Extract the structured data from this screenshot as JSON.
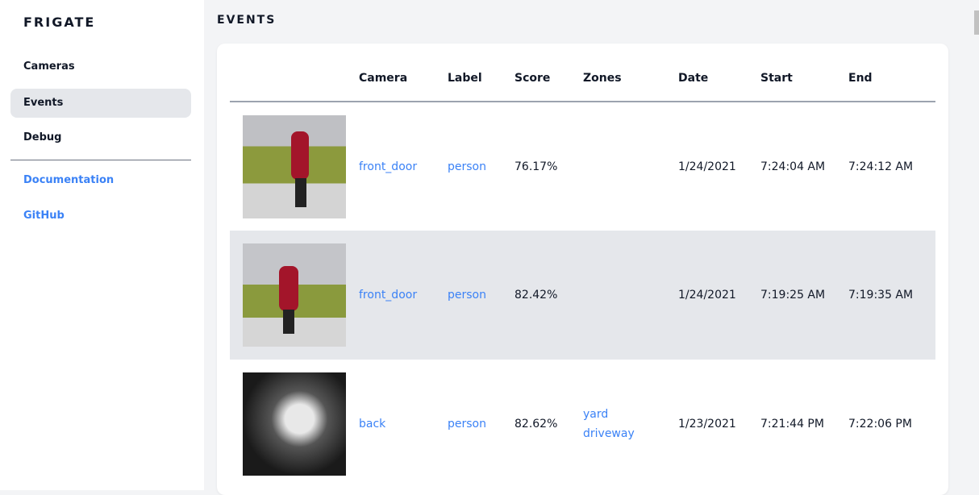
{
  "sidebar": {
    "brand": "FRIGATE",
    "items": [
      {
        "label": "Cameras"
      },
      {
        "label": "Events",
        "active": true
      },
      {
        "label": "Debug"
      }
    ],
    "links": [
      {
        "label": "Documentation"
      },
      {
        "label": "GitHub"
      }
    ]
  },
  "page": {
    "title": "EVENTS"
  },
  "table": {
    "headers": [
      "",
      "Camera",
      "Label",
      "Score",
      "Zones",
      "Date",
      "Start",
      "End"
    ],
    "rows": [
      {
        "camera": "front_door",
        "label": "person",
        "score": "76.17%",
        "zones": [
          "",
          ""
        ],
        "date": "1/24/2021",
        "start": "7:24:04 AM",
        "end": "7:24:12 AM"
      },
      {
        "camera": "front_door",
        "label": "person",
        "score": "82.42%",
        "zones": [
          "",
          ""
        ],
        "date": "1/24/2021",
        "start": "7:19:25 AM",
        "end": "7:19:35 AM"
      },
      {
        "camera": "back",
        "label": "person",
        "score": "82.62%",
        "zones": [
          "yard",
          "driveway"
        ],
        "date": "1/23/2021",
        "start": "7:21:44 PM",
        "end": "7:22:06 PM"
      }
    ]
  }
}
